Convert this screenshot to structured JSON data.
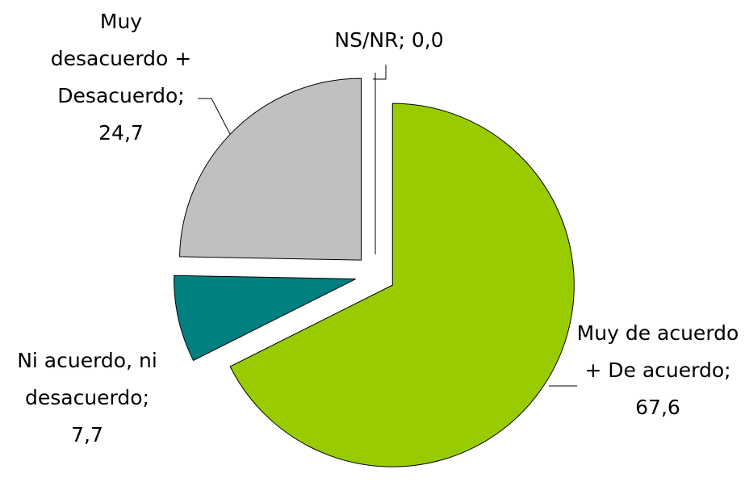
{
  "chart_data": {
    "type": "pie",
    "categories": [
      "Muy de acuerdo + De acuerdo",
      "Ni acuerdo, ni desacuerdo",
      "Muy desacuerdo + Desacuerdo",
      "NS/NR"
    ],
    "values": [
      67.6,
      7.7,
      24.7,
      0.0
    ],
    "value_labels": [
      "67,6",
      "7,7",
      "24,7",
      "0,0"
    ],
    "label_separator": "; ",
    "colors": [
      "#99cc00",
      "#008080",
      "#c0c0c0",
      "#ffffff"
    ],
    "exploded": true
  }
}
